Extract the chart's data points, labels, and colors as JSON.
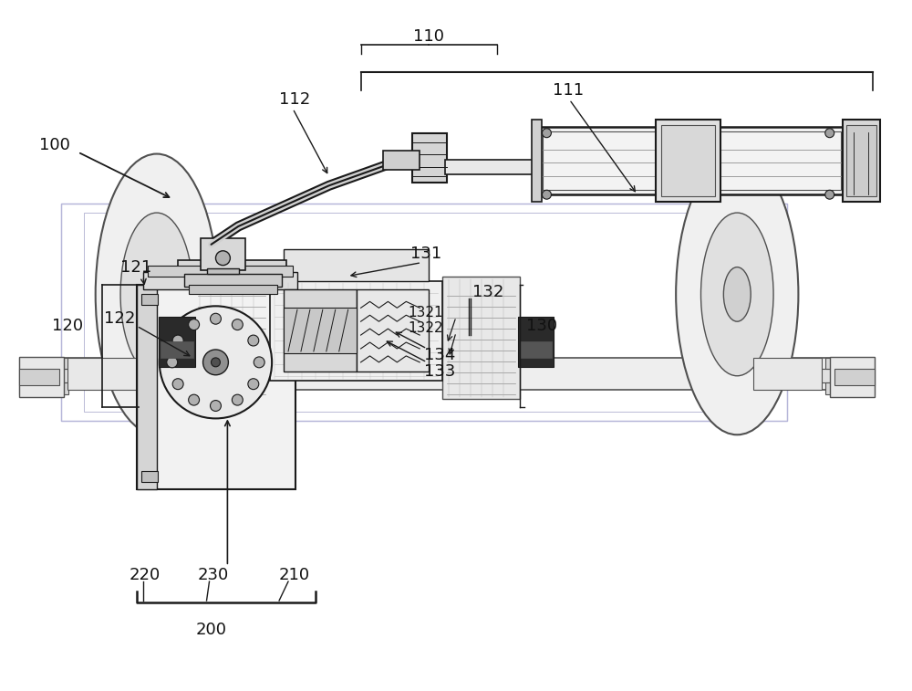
{
  "bg_color": "#ffffff",
  "line_color": "#505050",
  "dark_line": "#1a1a1a",
  "light_line": "#909090",
  "cyan_line": "#80b0c0",
  "fig_width": 10.0,
  "fig_height": 7.57
}
